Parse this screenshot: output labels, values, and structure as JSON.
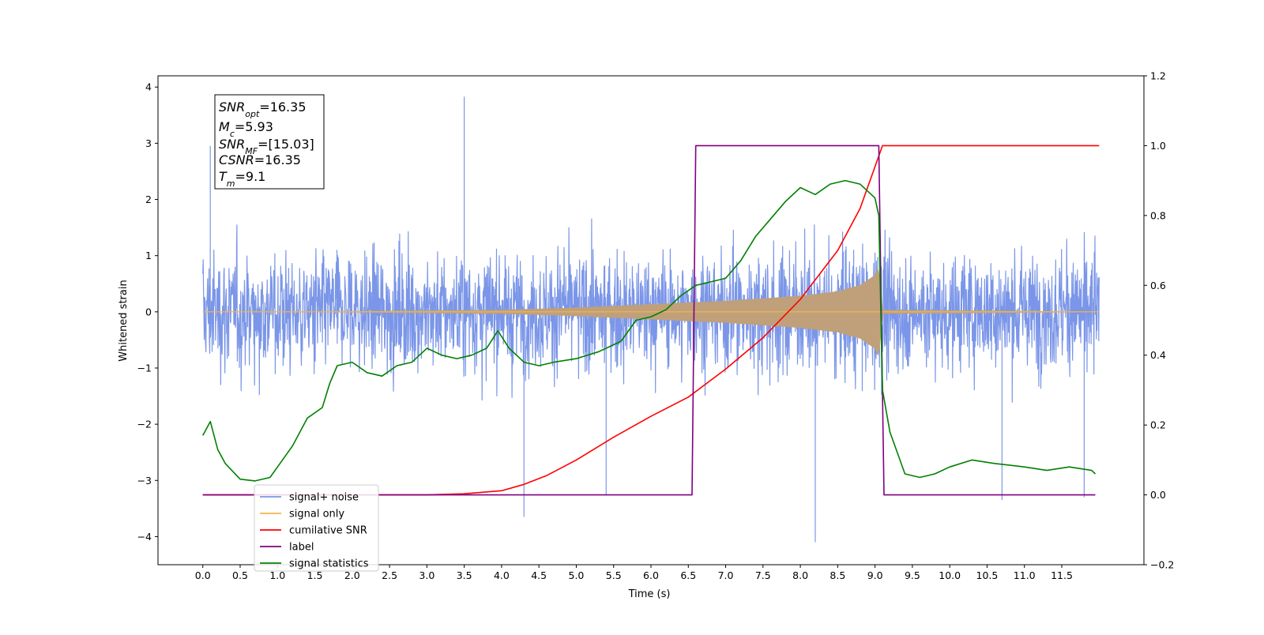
{
  "chart_data": {
    "type": "line",
    "title": "",
    "xlabel": "Time (s)",
    "ylabel": "Whitened strain",
    "xlim": [
      -0.6,
      12.6
    ],
    "ylim": [
      -4.5,
      4.2
    ],
    "y2lim": [
      -0.2,
      1.2
    ],
    "x_ticks": [
      "0.0",
      "0.5",
      "1.0",
      "1.5",
      "2.0",
      "2.5",
      "3.0",
      "3.5",
      "4.0",
      "4.5",
      "5.0",
      "5.5",
      "6.0",
      "6.5",
      "7.0",
      "7.5",
      "8.0",
      "8.5",
      "9.0",
      "9.5",
      "10.0",
      "10.5",
      "11.0",
      "11.5"
    ],
    "y_ticks": [
      "4",
      "3",
      "2",
      "1",
      "0",
      "−1",
      "−2",
      "−3",
      "−4"
    ],
    "y2_ticks": [
      "1.2",
      "1.0",
      "0.8",
      "0.6",
      "0.4",
      "0.2",
      "0.0",
      "−0.2"
    ],
    "grid": false,
    "legend_position": "lower-left",
    "annotation": {
      "snr_opt": {
        "sym": "SNR",
        "sub": "opt",
        "val": "=16.35"
      },
      "mc": {
        "sym": "M",
        "sub": "c",
        "val": "=5.93"
      },
      "snr_mf": {
        "sym": "SNR",
        "sub": "MF",
        "val": "=[15.03]"
      },
      "csnr": {
        "sym": "CSNR",
        "sub": "",
        "val": "=16.35"
      },
      "tm": {
        "sym": "T",
        "sub": "m",
        "val": "=9.1"
      }
    },
    "series": [
      {
        "name": "signal+ noise",
        "axis": "left",
        "color": "#7b96e8",
        "kind": "noise",
        "x_range": [
          0.0,
          12.0
        ],
        "band_lower": -1.5,
        "band_upper": 1.5,
        "typical_peak": 2.4,
        "max": 3.83,
        "min": -4.1,
        "signal_region": [
          6.5,
          9.1
        ]
      },
      {
        "name": "signal only",
        "axis": "left",
        "color": "#f5b54a",
        "fill_color": "#bfa07a",
        "kind": "chirp",
        "x_range": [
          0.0,
          12.0
        ],
        "envelope": {
          "x": [
            0.0,
            2.0,
            4.0,
            5.0,
            6.0,
            7.0,
            8.0,
            8.5,
            8.8,
            9.0,
            9.05,
            9.1,
            12.0
          ],
          "amp": [
            0.0,
            0.005,
            0.03,
            0.07,
            0.13,
            0.19,
            0.28,
            0.36,
            0.47,
            0.65,
            0.8,
            0.03,
            0.0
          ]
        }
      },
      {
        "name": "cumilative SNR",
        "axis": "right",
        "color": "#ff0000",
        "x": [
          0.0,
          3.0,
          3.5,
          4.0,
          4.3,
          4.6,
          5.0,
          5.5,
          6.0,
          6.5,
          7.0,
          7.5,
          8.0,
          8.5,
          8.8,
          9.0,
          9.1,
          12.0
        ],
        "y": [
          0.0,
          0.0,
          0.003,
          0.012,
          0.03,
          0.055,
          0.1,
          0.165,
          0.225,
          0.28,
          0.36,
          0.45,
          0.56,
          0.7,
          0.82,
          0.94,
          1.0,
          1.0
        ]
      },
      {
        "name": "label",
        "axis": "right",
        "color": "#800080",
        "x": [
          0.0,
          6.55,
          6.6,
          9.05,
          9.12,
          11.95
        ],
        "y": [
          0.0,
          0.0,
          1.0,
          1.0,
          0.0,
          0.0
        ]
      },
      {
        "name": "signal statistics",
        "axis": "right",
        "color": "#008000",
        "x": [
          0.0,
          0.1,
          0.2,
          0.3,
          0.5,
          0.7,
          0.9,
          1.0,
          1.2,
          1.4,
          1.6,
          1.7,
          1.8,
          2.0,
          2.2,
          2.4,
          2.6,
          2.8,
          3.0,
          3.2,
          3.4,
          3.6,
          3.8,
          3.95,
          4.1,
          4.3,
          4.5,
          4.7,
          5.0,
          5.3,
          5.6,
          5.8,
          6.0,
          6.2,
          6.4,
          6.6,
          6.8,
          7.0,
          7.2,
          7.4,
          7.6,
          7.8,
          8.0,
          8.2,
          8.4,
          8.6,
          8.8,
          9.0,
          9.05,
          9.1,
          9.2,
          9.4,
          9.6,
          9.8,
          10.0,
          10.3,
          10.6,
          11.0,
          11.3,
          11.6,
          11.9,
          11.95
        ],
        "y": [
          0.17,
          0.21,
          0.13,
          0.09,
          0.045,
          0.04,
          0.05,
          0.08,
          0.14,
          0.22,
          0.25,
          0.32,
          0.37,
          0.38,
          0.35,
          0.34,
          0.37,
          0.38,
          0.42,
          0.4,
          0.39,
          0.4,
          0.42,
          0.47,
          0.42,
          0.38,
          0.37,
          0.38,
          0.39,
          0.41,
          0.44,
          0.5,
          0.51,
          0.53,
          0.57,
          0.6,
          0.61,
          0.62,
          0.67,
          0.74,
          0.79,
          0.84,
          0.88,
          0.86,
          0.89,
          0.9,
          0.89,
          0.85,
          0.8,
          0.3,
          0.18,
          0.06,
          0.05,
          0.06,
          0.08,
          0.1,
          0.09,
          0.08,
          0.07,
          0.08,
          0.07,
          0.06
        ]
      }
    ]
  }
}
